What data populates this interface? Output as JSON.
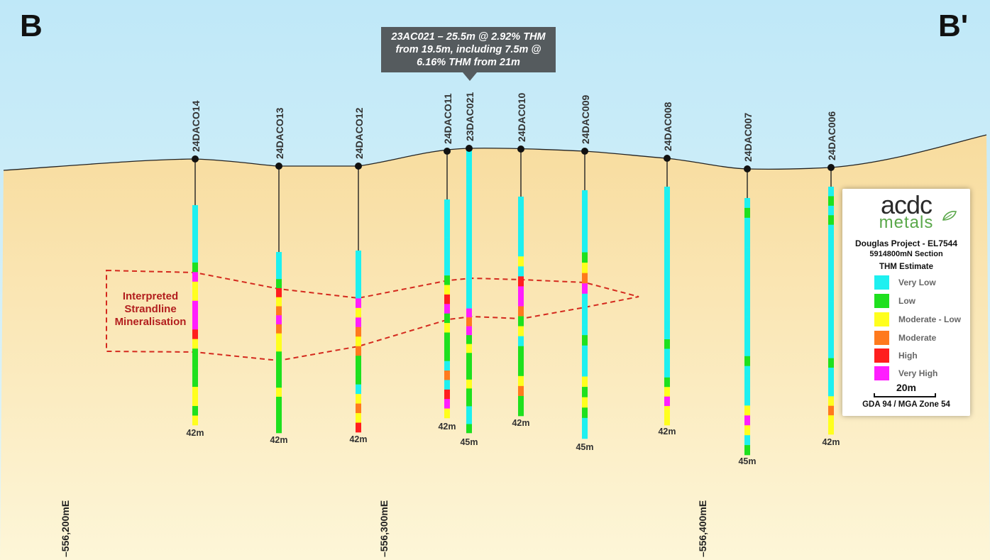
{
  "section": {
    "start_label": "B",
    "end_label": "B'"
  },
  "callout": {
    "lines": [
      "23AC021 – 25.5m @ 2.92% THM",
      "from 19.5m, including 7.5m @",
      "6.16% THM from 21m"
    ]
  },
  "annotation": {
    "lines": [
      "Interpreted",
      "Strandline",
      "Mineralisation"
    ]
  },
  "eastings": [
    "556,200mE",
    "556,300mE",
    "556,400mE"
  ],
  "legend": {
    "logo_top": "acdc",
    "logo_bottom": "metals",
    "project": "Douglas Project - EL7544",
    "section": "5914800mN  Section",
    "estimate_title": "THM Estimate",
    "classes": [
      {
        "key": "VL",
        "label": "Very Low",
        "color": "#1ef0f0"
      },
      {
        "key": "L",
        "label": "Low",
        "color": "#1ee01e"
      },
      {
        "key": "ML",
        "label": "Moderate - Low",
        "color": "#ffff1e"
      },
      {
        "key": "M",
        "label": "Moderate",
        "color": "#ff7a1e"
      },
      {
        "key": "H",
        "label": "High",
        "color": "#ff1e1e"
      },
      {
        "key": "VH",
        "label": "Very High",
        "color": "#ff1eff"
      }
    ],
    "scale_label": "20m",
    "crs": "GDA 94 / MGA Zone 54"
  },
  "colors": {
    "sky_top": "#bfe8f8",
    "sky_bottom": "#e6f6f7",
    "ground_top": "#f8dc9e",
    "ground_bottom": "#fdf6d8",
    "mineral_outline": "#d42a1e",
    "annotation_text": "#b21e1e"
  },
  "holes": [
    {
      "id": "24DACO14",
      "depth_label": "42m",
      "intervals": [
        "VL",
        "VL",
        "VL",
        "VL",
        "VL",
        "VL",
        "L",
        "VH",
        "ML",
        "ML",
        "VH",
        "VH",
        "VH",
        "H",
        "ML",
        "L",
        "L",
        "L",
        "L",
        "ML",
        "ML",
        "L",
        "ML"
      ]
    },
    {
      "id": "24DACO13",
      "depth_label": "42m",
      "intervals": [
        "VL",
        "VL",
        "VL",
        "L",
        "H",
        "ML",
        "M",
        "VH",
        "M",
        "ML",
        "ML",
        "L",
        "L",
        "L",
        "L",
        "ML",
        "L",
        "L",
        "L",
        "L"
      ]
    },
    {
      "id": "24DACO12",
      "depth_label": "42m",
      "intervals": [
        "VL",
        "VL",
        "VL",
        "VL",
        "VL",
        "VH",
        "ML",
        "VH",
        "M",
        "ML",
        "M",
        "L",
        "L",
        "L",
        "VL",
        "ML",
        "M",
        "ML",
        "H"
      ]
    },
    {
      "id": "24DACO11",
      "depth_label": "42m",
      "intervals": [
        "VL",
        "VL",
        "VL",
        "VL",
        "VL",
        "VL",
        "VL",
        "VL",
        "L",
        "ML",
        "H",
        "VH",
        "L",
        "ML",
        "L",
        "L",
        "L",
        "VL",
        "M",
        "VL",
        "H",
        "VH",
        "ML"
      ]
    },
    {
      "id": "23DAC021",
      "depth_label": "45m",
      "intervals": [
        "VL",
        "VL",
        "VL",
        "VL",
        "VL",
        "VL",
        "VL",
        "VL",
        "VL",
        "VL",
        "VL",
        "VL",
        "VL",
        "VL",
        "VL",
        "VL",
        "VL",
        "VL",
        "VH",
        "M",
        "VH",
        "L",
        "ML",
        "L",
        "L",
        "L",
        "ML",
        "L",
        "L",
        "VL",
        "VL",
        "L"
      ]
    },
    {
      "id": "24DAC010",
      "depth_label": "42m",
      "intervals": [
        "VL",
        "VL",
        "VL",
        "VL",
        "VL",
        "VL",
        "ML",
        "VL",
        "H",
        "VH",
        "VH",
        "M",
        "L",
        "ML",
        "VL",
        "L",
        "L",
        "L",
        "ML",
        "M",
        "L",
        "L"
      ]
    },
    {
      "id": "24DAC009",
      "depth_label": "45m",
      "intervals": [
        "VL",
        "VL",
        "VL",
        "VL",
        "VL",
        "VL",
        "L",
        "ML",
        "M",
        "VH",
        "VL",
        "VL",
        "VL",
        "VL",
        "L",
        "VL",
        "VL",
        "VL",
        "ML",
        "L",
        "ML",
        "L",
        "VL",
        "VL"
      ]
    },
    {
      "id": "24DAC008",
      "depth_label": "42m",
      "intervals": [
        "VL",
        "VL",
        "VL",
        "VL",
        "VL",
        "VL",
        "VL",
        "VL",
        "VL",
        "VL",
        "VL",
        "VL",
        "VL",
        "VL",
        "VL",
        "VL",
        "L",
        "VL",
        "VL",
        "VL",
        "L",
        "ML",
        "VH",
        "ML",
        "ML"
      ]
    },
    {
      "id": "24DAC007",
      "depth_label": "45m",
      "intervals": [
        "VL",
        "L",
        "VL",
        "VL",
        "VL",
        "VL",
        "VL",
        "VL",
        "VL",
        "VL",
        "VL",
        "VL",
        "VL",
        "VL",
        "VL",
        "VL",
        "L",
        "VL",
        "VL",
        "VL",
        "VL",
        "ML",
        "VH",
        "ML",
        "VL",
        "L"
      ]
    },
    {
      "id": "24DAC006",
      "depth_label": "42m",
      "intervals": [
        "VL",
        "L",
        "VL",
        "L",
        "VL",
        "VL",
        "VL",
        "VL",
        "VL",
        "VL",
        "VL",
        "VL",
        "VL",
        "VL",
        "VL",
        "VL",
        "VL",
        "VL",
        "L",
        "VL",
        "VL",
        "VL",
        "ML",
        "M",
        "ML",
        "ML"
      ]
    }
  ]
}
